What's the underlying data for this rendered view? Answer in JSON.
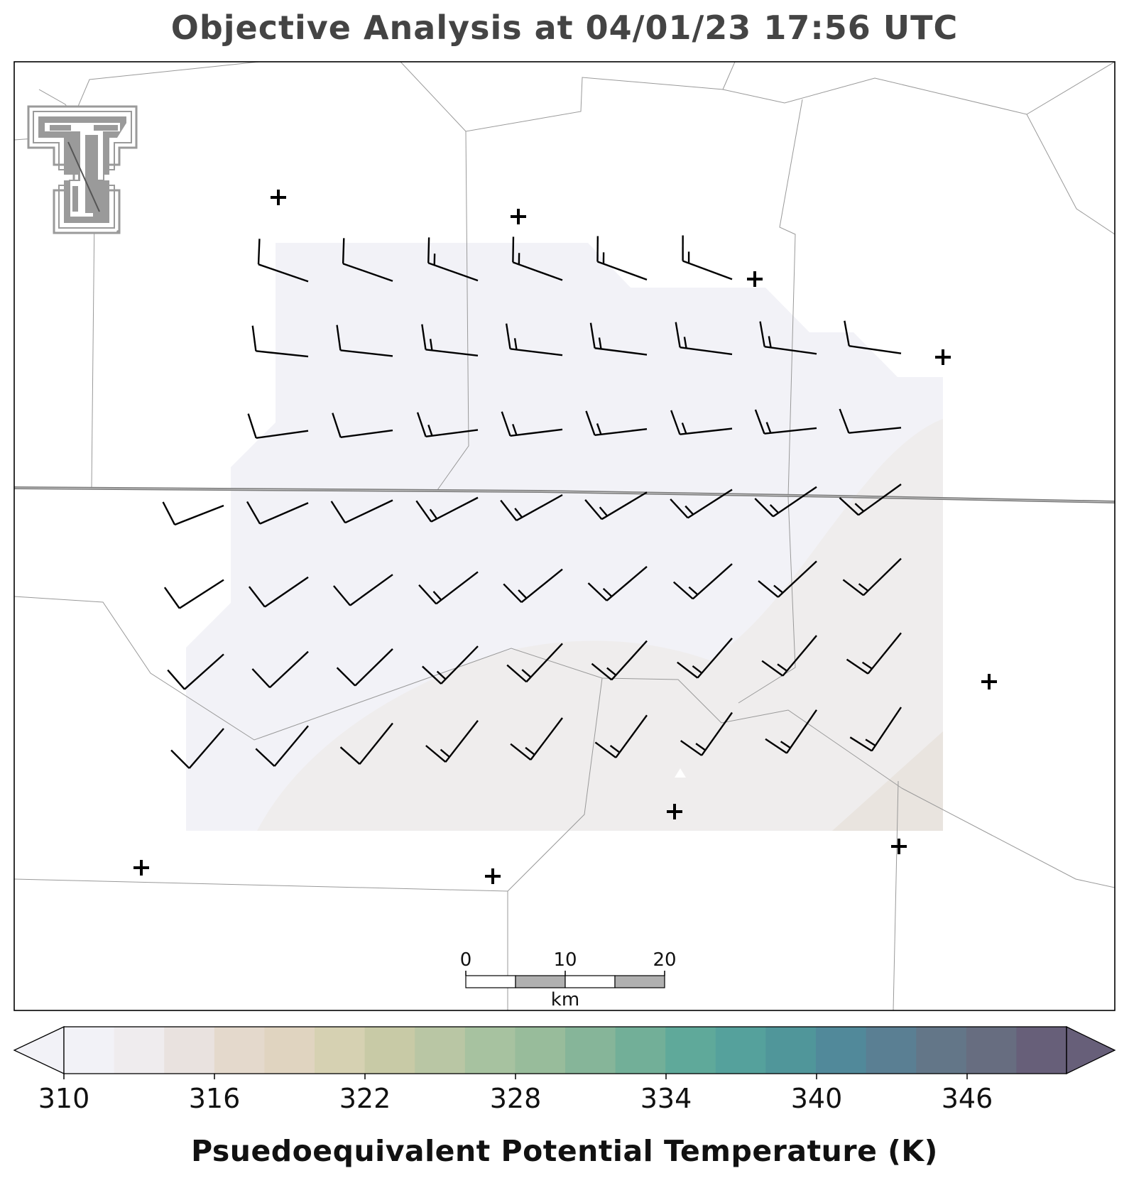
{
  "title": "Objective Analysis at 04/01/23 17:56 UTC",
  "colorbar": {
    "label": "Psuedoequivalent Potential Temperature (K)",
    "min": 310,
    "max": 348,
    "step": 2,
    "ticks": [
      "310",
      "316",
      "322",
      "328",
      "334",
      "340",
      "346"
    ],
    "colors": [
      "#f2f2f7",
      "#efecee",
      "#e9e2df",
      "#e4d9cc",
      "#e0d4c0",
      "#d6d1b2",
      "#c8caa6",
      "#b9c6a4",
      "#a7c2a0",
      "#98bc9b",
      "#86b599",
      "#72af98",
      "#5fa99a",
      "#55a19c",
      "#50969a",
      "#51899a",
      "#5a7f93",
      "#637688",
      "#676d80",
      "#675f79"
    ],
    "extend": "both"
  },
  "scale_bar": {
    "labels": [
      "0",
      "10",
      "20"
    ],
    "unit": "km"
  },
  "logo": {
    "text": "TT"
  },
  "stations": [
    {
      "id": "s1"
    },
    {
      "id": "s2"
    },
    {
      "id": "s3"
    },
    {
      "id": "s4"
    },
    {
      "id": "s5"
    },
    {
      "id": "s6"
    },
    {
      "id": "s7"
    },
    {
      "id": "s8"
    },
    {
      "id": "s9"
    },
    {
      "id": "s10"
    }
  ]
}
